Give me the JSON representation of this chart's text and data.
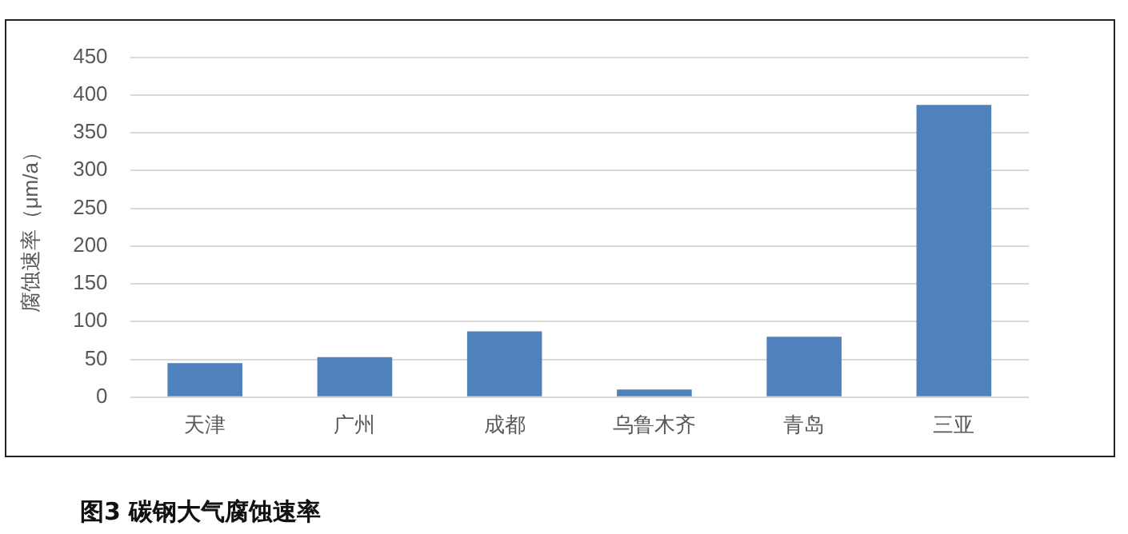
{
  "chart_data": {
    "type": "bar",
    "title": "图3 碳钢大气腐蚀速率",
    "ylabel": "腐蚀速率（μm/a）",
    "categories": [
      "天津",
      "广州",
      "成都",
      "乌鲁木齐",
      "青岛",
      "三亚"
    ],
    "values": [
      45,
      53,
      87,
      10,
      80,
      387
    ],
    "color": "#4f81bd",
    "ylim": [
      0,
      450
    ],
    "yticks": [
      0,
      50,
      100,
      150,
      200,
      250,
      300,
      350,
      400,
      450
    ],
    "grid": "y",
    "legend": false
  }
}
